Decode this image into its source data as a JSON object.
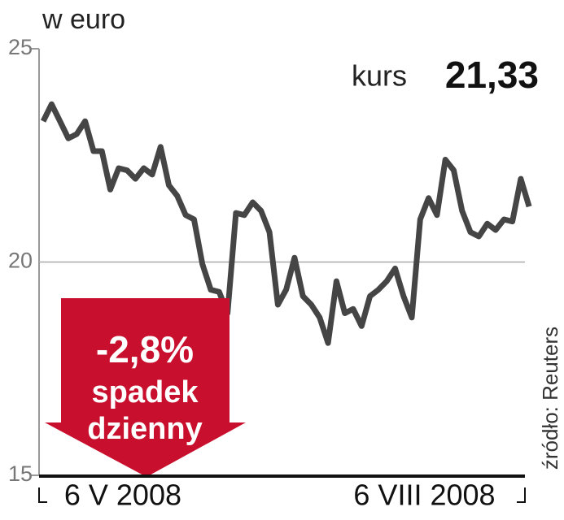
{
  "chart_data": {
    "type": "line",
    "title": "w euro",
    "price_label": "kurs",
    "price_value": "21,33",
    "source": "źródło: Reuters",
    "arrow_text": [
      "-2,8%",
      "spadek",
      "dzienny"
    ],
    "series": [
      {
        "color": "#454545",
        "values": [
          23.3,
          23.7,
          23.3,
          22.9,
          23.0,
          23.3,
          22.6,
          22.6,
          21.7,
          22.2,
          22.15,
          21.95,
          22.2,
          22.05,
          22.7,
          21.8,
          21.55,
          21.1,
          21.0,
          19.95,
          19.35,
          19.3,
          18.8,
          21.15,
          21.1,
          21.4,
          21.2,
          20.7,
          19.0,
          19.35,
          20.1,
          19.2,
          19.0,
          18.7,
          18.1,
          19.55,
          18.8,
          18.9,
          18.5,
          19.2,
          19.35,
          19.55,
          19.85,
          19.2,
          18.7,
          21.0,
          21.5,
          21.1,
          22.4,
          22.15,
          21.2,
          20.7,
          20.6,
          20.9,
          20.75,
          21.0,
          20.95,
          21.95,
          21.3
        ]
      }
    ],
    "xlim": [
      0,
      58
    ],
    "xticks": [
      {
        "value": 10,
        "label": "6 V 2008"
      },
      {
        "value": 46,
        "label": "6 VIII 2008"
      }
    ],
    "ylim": [
      15,
      25
    ],
    "yticks": [
      15,
      20,
      25
    ],
    "grid": true
  }
}
